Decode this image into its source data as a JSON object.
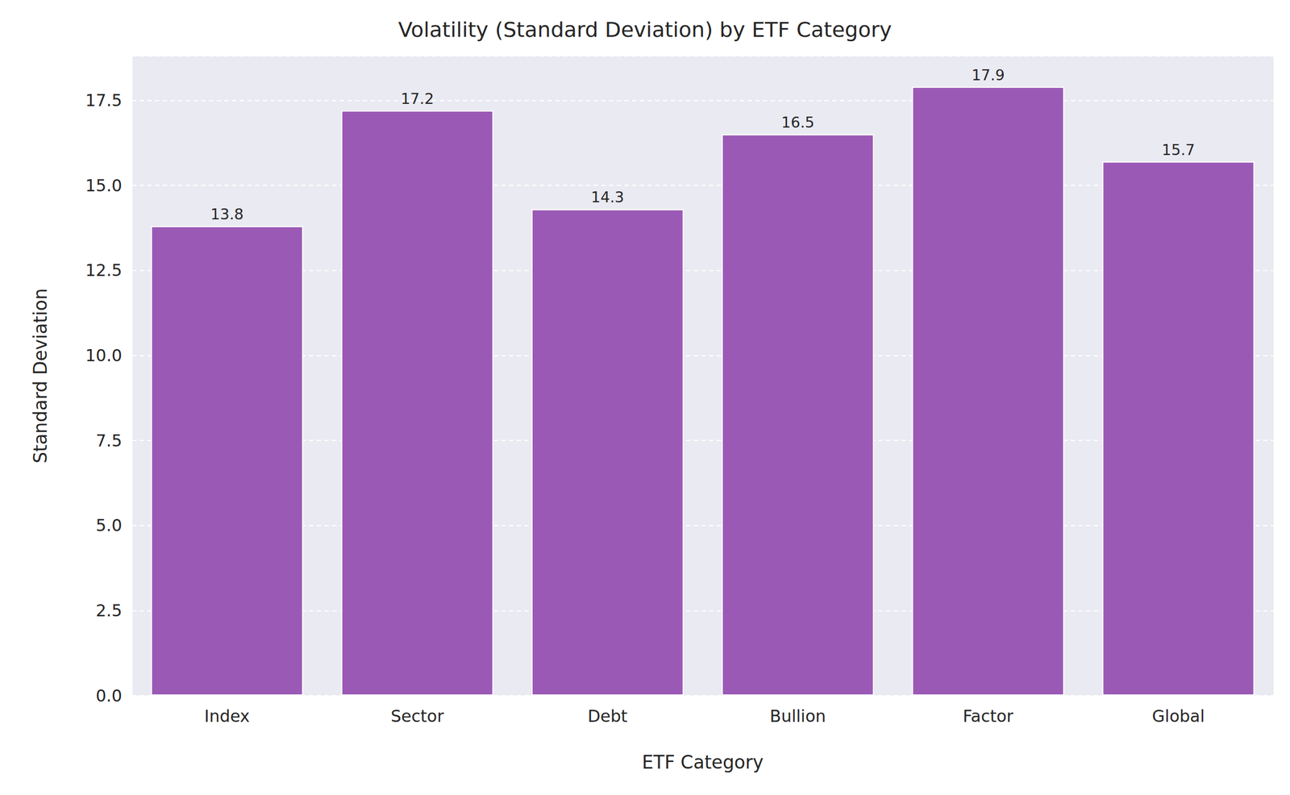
{
  "chart_data": {
    "type": "bar",
    "title": "Volatility (Standard Deviation) by ETF Category",
    "x_label": "ETF Category",
    "y_label": "Standard Deviation",
    "categories": [
      "Index",
      "Sector",
      "Debt",
      "Bullion",
      "Factor",
      "Global"
    ],
    "values": [
      13.8,
      17.2,
      14.3,
      16.5,
      17.9,
      15.7
    ],
    "color": "#9b59b6",
    "ylim": [
      0,
      18.8
    ],
    "yticks": [
      {
        "value": 0,
        "label": "0.0"
      },
      2.5,
      {
        "value": 5,
        "label": "5.0"
      },
      7.5,
      {
        "value": 10,
        "label": "10.0"
      },
      12.5,
      {
        "value": 15,
        "label": "15.0"
      },
      17.5
    ],
    "grid": true,
    "data_labels": true
  }
}
